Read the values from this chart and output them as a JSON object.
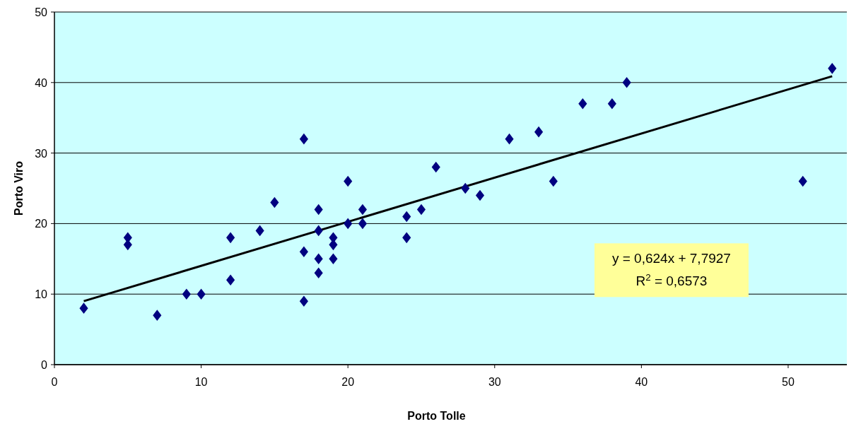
{
  "chart_data": {
    "type": "scatter",
    "xlabel": "Porto Tolle",
    "ylabel": "Porto Viro",
    "xlim": [
      0,
      54
    ],
    "xticks": [
      0,
      10,
      20,
      30,
      40,
      50
    ],
    "ylim": [
      0,
      50
    ],
    "yticks": [
      0,
      10,
      20,
      30,
      40,
      50
    ],
    "grid": "y",
    "annotations": [
      "y = 0,624x + 7,7927",
      "R$^{2}$ = 0,6573"
    ],
    "series": [
      {
        "marker": "diamond",
        "color": "#000080",
        "x": [
          2,
          5,
          5,
          7,
          9,
          10,
          12,
          12,
          14,
          15,
          17,
          17,
          17,
          18,
          18,
          18,
          18,
          19,
          19,
          19,
          20,
          20,
          21,
          21,
          24,
          24,
          25,
          26,
          28,
          29,
          31,
          33,
          34,
          36,
          38,
          39,
          51,
          53
        ],
        "values": [
          8,
          18,
          17,
          7,
          10,
          10,
          18,
          12,
          19,
          23,
          32,
          16,
          9,
          22,
          19,
          15,
          13,
          18,
          17,
          15,
          26,
          20,
          22,
          20,
          21,
          18,
          22,
          28,
          25,
          24,
          32,
          33,
          26,
          37,
          37,
          40,
          26,
          42
        ]
      },
      {
        "type": "line",
        "marker": "none",
        "color": "#000000",
        "x": [
          2,
          53
        ],
        "values": [
          9.0,
          40.9
        ]
      }
    ]
  }
}
